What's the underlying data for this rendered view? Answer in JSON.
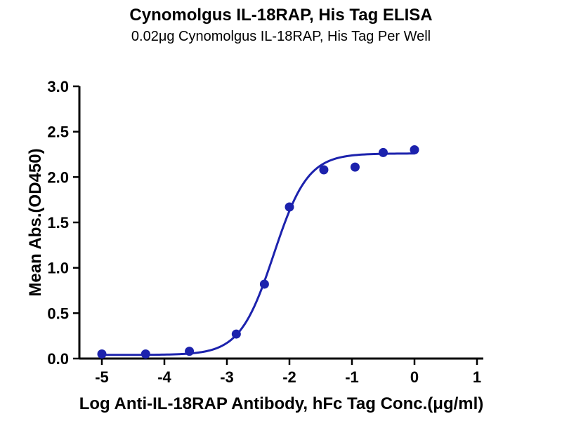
{
  "chart_data": {
    "type": "scatter",
    "title": "Cynomolgus IL-18RAP, His Tag ELISA",
    "subtitle": "0.02μg Cynomolgus IL-18RAP, His Tag Per Well",
    "xlabel": "Log Anti-IL-18RAP Antibody, hFc Tag Conc.(μg/ml)",
    "ylabel": "Mean Abs.(OD450)",
    "xlim": [
      -5,
      1
    ],
    "ylim": [
      0,
      3
    ],
    "x_ticks": [
      -5,
      -4,
      -3,
      -2,
      -1,
      0,
      1
    ],
    "y_ticks": [
      0,
      0.5,
      1,
      1.5,
      2,
      2.5,
      3
    ],
    "grid": false,
    "legend": "none",
    "point_color": "#1c22ad",
    "curve_color": "#1c22ad",
    "points": [
      {
        "x": -5.0,
        "y": 0.05
      },
      {
        "x": -4.3,
        "y": 0.05
      },
      {
        "x": -3.6,
        "y": 0.08
      },
      {
        "x": -2.85,
        "y": 0.27
      },
      {
        "x": -2.4,
        "y": 0.82
      },
      {
        "x": -2.0,
        "y": 1.67
      },
      {
        "x": -1.45,
        "y": 2.08
      },
      {
        "x": -0.95,
        "y": 2.11
      },
      {
        "x": -0.5,
        "y": 2.27
      },
      {
        "x": 0.0,
        "y": 2.3
      }
    ],
    "fit_curve": {
      "model": "4PL",
      "bottom": 0.04,
      "top": 2.26,
      "log_ec50": -2.25,
      "hill": 1.6,
      "x_start": -5.0,
      "x_end": 0.0
    }
  }
}
